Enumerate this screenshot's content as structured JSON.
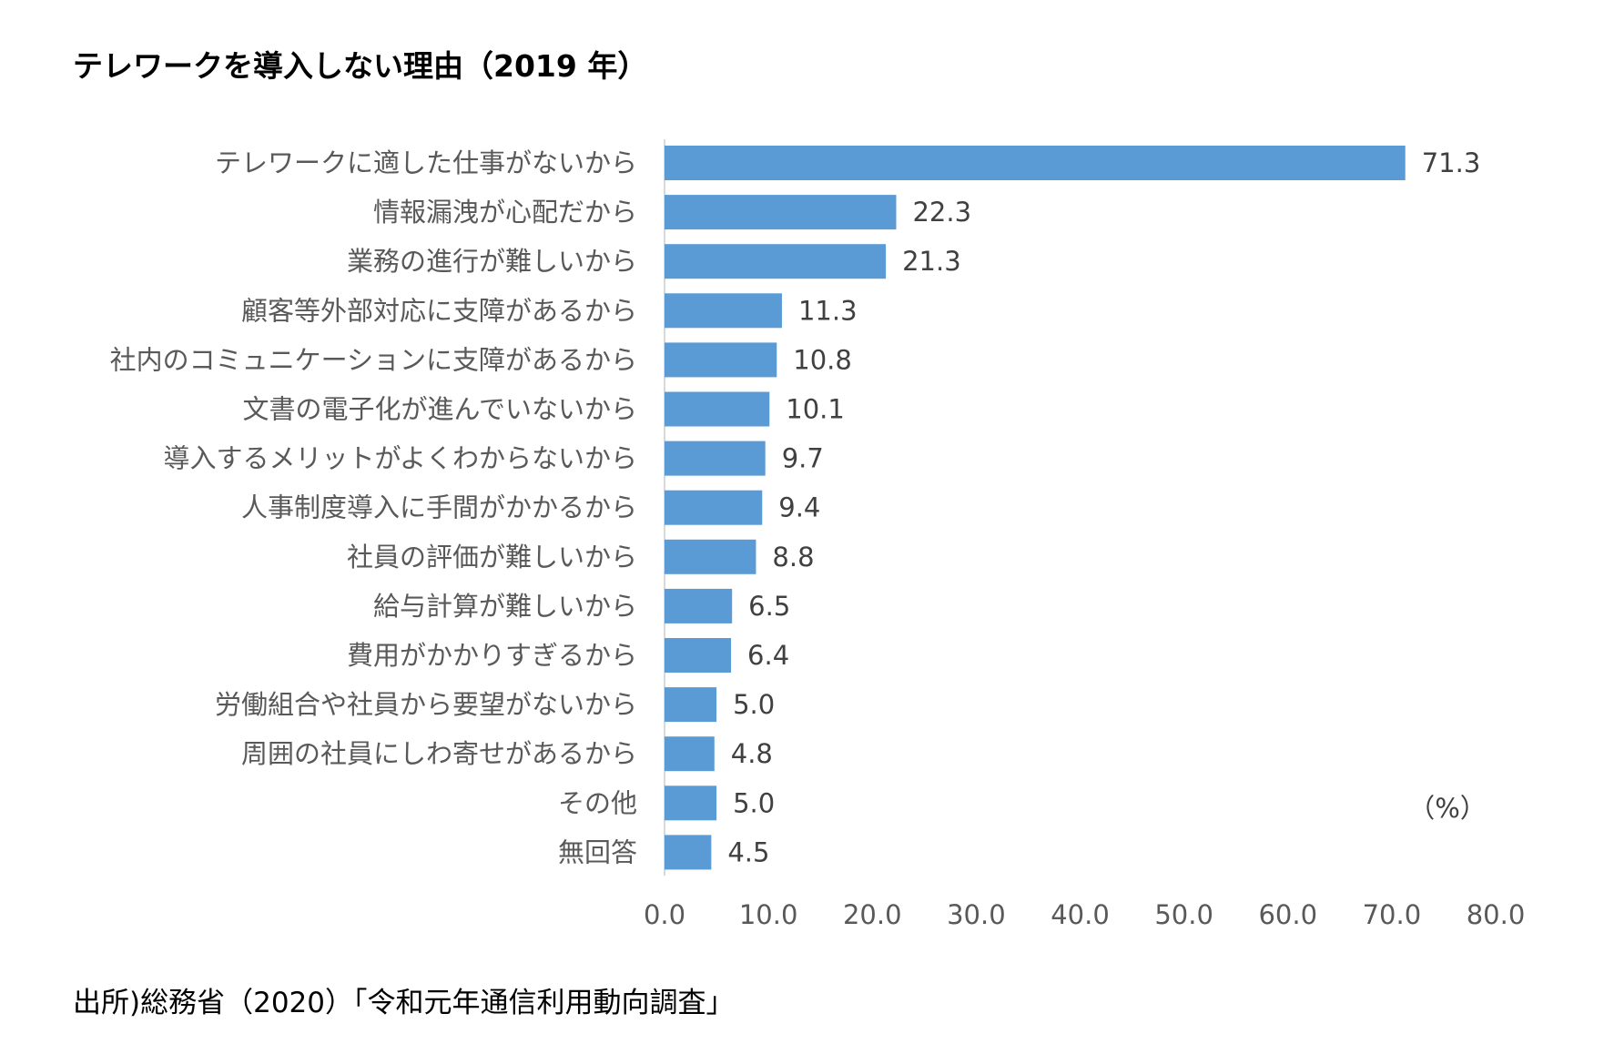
{
  "title": "テレワークを導入しない理由（2019 年）",
  "source": "出所)総務省（2020）「令和元年通信利用動向調査」",
  "colors": {
    "bar": "#5b9bd5",
    "axis": "#d9d9d9"
  },
  "chart_data": {
    "type": "bar",
    "orientation": "horizontal",
    "title": "テレワークを導入しない理由（2019 年）",
    "unit": "（%）",
    "categories": [
      "テレワークに適した仕事がないから",
      "情報漏洩が心配だから",
      "業務の進行が難しいから",
      "顧客等外部対応に支障があるから",
      "社内のコミュニケーションに支障があるから",
      "文書の電子化が進んでいないから",
      "導入するメリットがよくわからないから",
      "人事制度導入に手間がかかるから",
      "社員の評価が難しいから",
      "給与計算が難しいから",
      "費用がかかりすぎるから",
      "労働組合や社員から要望がないから",
      "周囲の社員にしわ寄せがあるから",
      "その他",
      "無回答"
    ],
    "values": [
      71.3,
      22.3,
      21.3,
      11.3,
      10.8,
      10.1,
      9.7,
      9.4,
      8.8,
      6.5,
      6.4,
      5.0,
      4.8,
      5.0,
      4.5
    ],
    "value_labels": [
      "71.3",
      "22.3",
      "21.3",
      "11.3",
      "10.8",
      "10.1",
      "9.7",
      "9.4",
      "8.8",
      "6.5",
      "6.4",
      "5.0",
      "4.8",
      "5.0",
      "4.5"
    ],
    "xlim": [
      0,
      80
    ],
    "xticks": [
      "0.0",
      "10.0",
      "20.0",
      "30.0",
      "40.0",
      "50.0",
      "60.0",
      "70.0",
      "80.0"
    ],
    "grid": false,
    "legend": "none"
  }
}
